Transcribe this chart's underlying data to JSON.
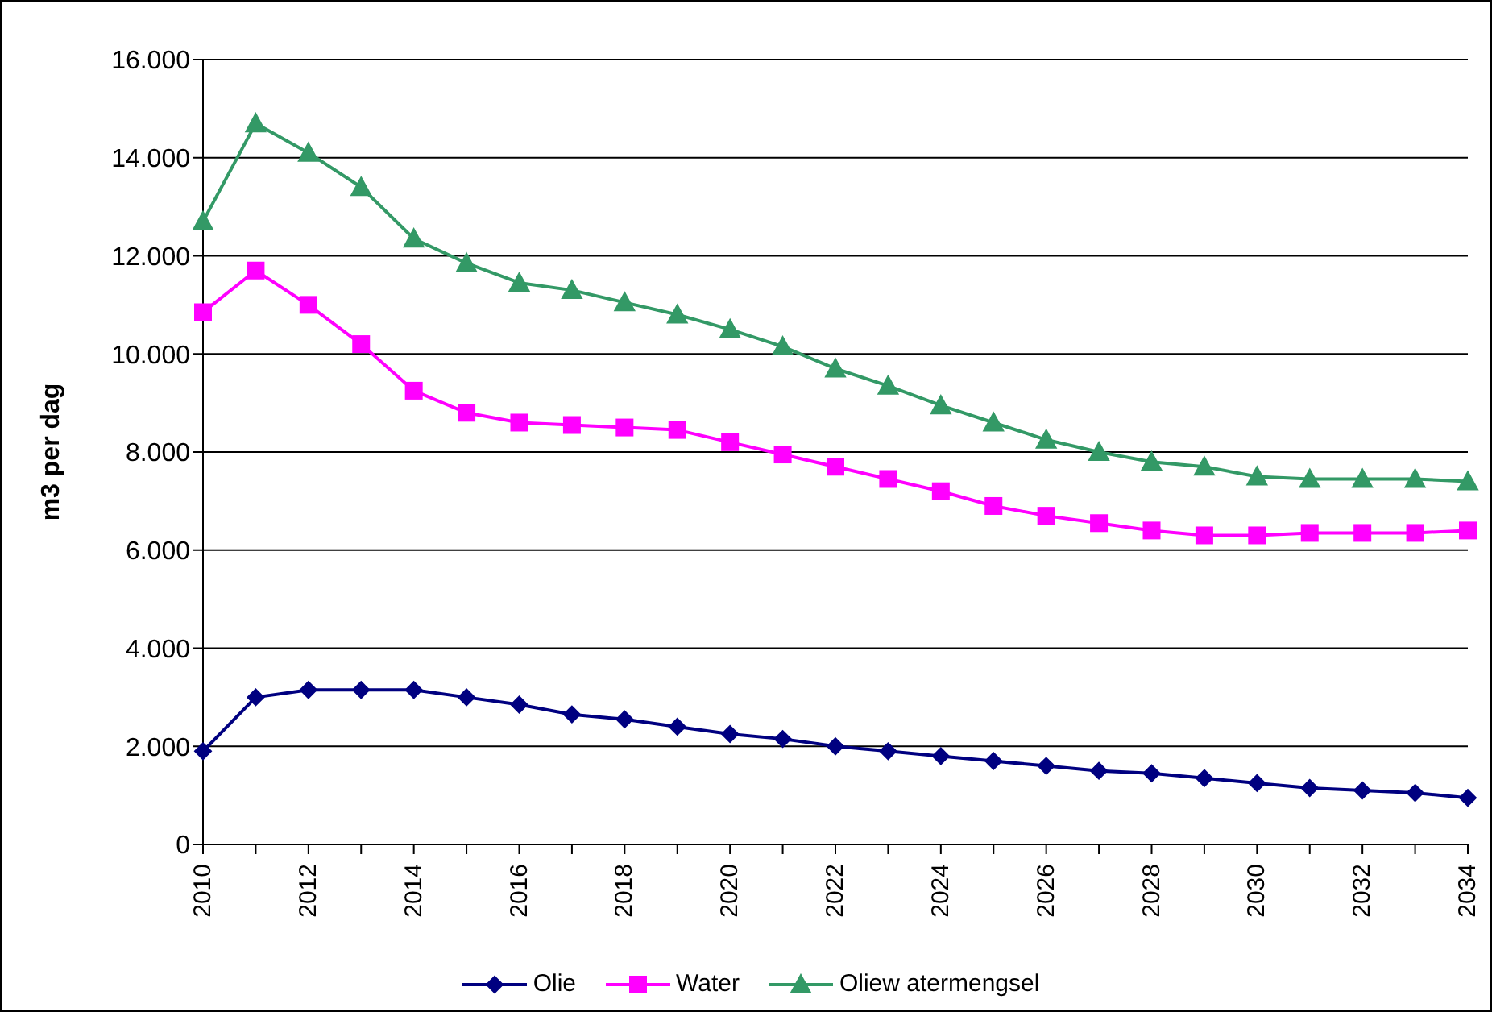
{
  "chart_data": {
    "type": "line",
    "ylabel": "m3 per dag",
    "categories": [
      "2010",
      null,
      "2012",
      null,
      "2014",
      null,
      "2016",
      null,
      "2018",
      null,
      "2020",
      null,
      "2022",
      null,
      "2024",
      null,
      "2026",
      null,
      "2028",
      null,
      "2030",
      null,
      "2032",
      null,
      "2034"
    ],
    "series": [
      {
        "name": "Olie",
        "color": "#000080",
        "marker": "diamond",
        "values": [
          1900,
          3000,
          3150,
          3150,
          3150,
          3000,
          2850,
          2650,
          2550,
          2400,
          2250,
          2150,
          2000,
          1900,
          1800,
          1700,
          1600,
          1500,
          1450,
          1350,
          1250,
          1150,
          1100,
          1050,
          950
        ]
      },
      {
        "name": "Water",
        "color": "#ff00ff",
        "marker": "square",
        "values": [
          10850,
          11700,
          11000,
          10200,
          9250,
          8800,
          8600,
          8550,
          8500,
          8450,
          8200,
          7950,
          7700,
          7450,
          7200,
          6900,
          6700,
          6550,
          6400,
          6300,
          6300,
          6350,
          6350,
          6350,
          6400
        ]
      },
      {
        "name": "Oliew atermengsel",
        "color": "#339966",
        "marker": "triangle",
        "values": [
          12700,
          14700,
          14100,
          13400,
          12350,
          11850,
          11450,
          11300,
          11050,
          10800,
          10500,
          10150,
          9700,
          9350,
          8950,
          8600,
          8250,
          8000,
          7800,
          7700,
          7500,
          7450,
          7450,
          7450,
          7400
        ]
      }
    ],
    "ylim": [
      0,
      16000
    ],
    "yticks": [
      0,
      {
        "value": 2000,
        "label": "2.000"
      },
      {
        "value": 4000,
        "label": "4.000"
      },
      {
        "value": 6000,
        "label": "6.000"
      },
      {
        "value": 8000,
        "label": "8.000"
      },
      {
        "value": 10000,
        "label": "10.000"
      },
      {
        "value": 12000,
        "label": "12.000"
      },
      {
        "value": 14000,
        "label": "14.000"
      },
      {
        "value": 16000,
        "label": "16.000"
      }
    ],
    "grid": "y",
    "legend": "bottom"
  }
}
